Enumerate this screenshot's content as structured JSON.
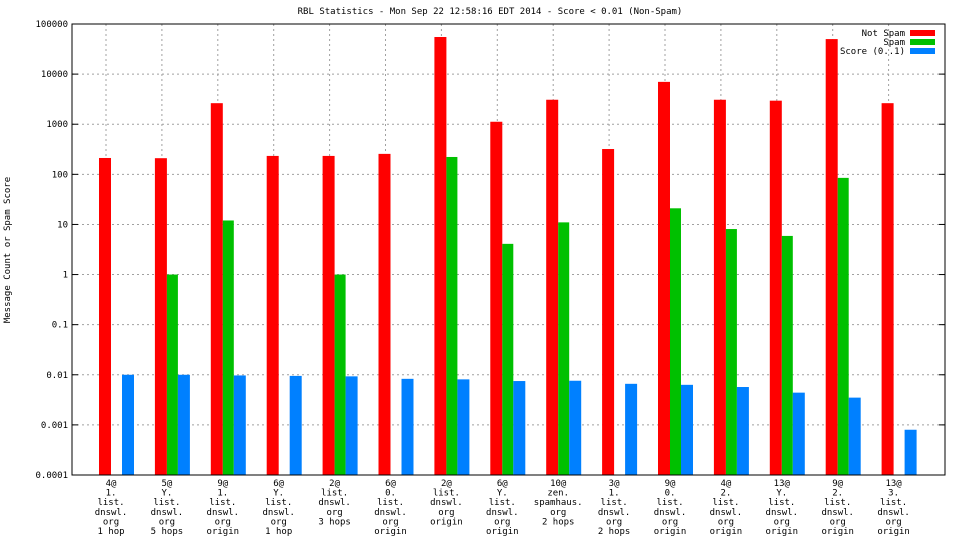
{
  "chart_data": {
    "type": "bar",
    "title": "RBL Statistics - Mon Sep 22 12:58:16 EDT 2014 - Score < 0.01 (Non-Spam)",
    "ylabel": "Message Count or Spam Score",
    "xlabel": "",
    "yscale": "log",
    "ylim": [
      0.0001,
      100000
    ],
    "yticks": [
      "0.0001",
      "0.001",
      "0.01",
      "0.1",
      "1",
      "10",
      "100",
      "1000",
      "10000",
      "100000"
    ],
    "grid": true,
    "legend_position": "top-right",
    "categories": [
      [
        "4@",
        "1.",
        "list.",
        "dnswl.",
        "org",
        "1 hop"
      ],
      [
        "5@",
        "Y.",
        "list.",
        "dnswl.",
        "org",
        "5 hops"
      ],
      [
        "9@",
        "1.",
        "list.",
        "dnswl.",
        "org",
        "origin"
      ],
      [
        "6@",
        "Y.",
        "list.",
        "dnswl.",
        "org",
        "1 hop"
      ],
      [
        "2@",
        "list.",
        "dnswl.",
        "org",
        "3 hops"
      ],
      [
        "6@",
        "0.",
        "list.",
        "dnswl.",
        "org",
        "origin"
      ],
      [
        "2@",
        "list.",
        "dnswl.",
        "org",
        "origin"
      ],
      [
        "6@",
        "Y.",
        "list.",
        "dnswl.",
        "org",
        "origin"
      ],
      [
        "10@",
        "zen.",
        "spamhaus.",
        "org",
        "2 hops"
      ],
      [
        "3@",
        "1.",
        "list.",
        "dnswl.",
        "org",
        "2 hops"
      ],
      [
        "9@",
        "0.",
        "list.",
        "dnswl.",
        "org",
        "origin"
      ],
      [
        "4@",
        "2.",
        "list.",
        "dnswl.",
        "org",
        "origin"
      ],
      [
        "13@",
        "Y.",
        "list.",
        "dnswl.",
        "org",
        "origin"
      ],
      [
        "9@",
        "2.",
        "list.",
        "dnswl.",
        "org",
        "origin"
      ],
      [
        "13@",
        "3.",
        "list.",
        "dnswl.",
        "org",
        "origin"
      ]
    ],
    "series": [
      {
        "name": "Not Spam",
        "color": "#ff0000",
        "values": [
          212,
          210,
          2630,
          233,
          233,
          256,
          55000,
          1120,
          3080,
          320,
          7000,
          3080,
          2950,
          50000,
          2630
        ]
      },
      {
        "name": "Spam",
        "color": "#00c000",
        "values": [
          null,
          1,
          12,
          null,
          1,
          null,
          222,
          4.1,
          11,
          null,
          21,
          8.1,
          5.9,
          85,
          null
        ]
      },
      {
        "name": "Score (0..1)",
        "color": "#0080ff",
        "values": [
          0.01,
          0.01,
          0.0097,
          0.0095,
          0.0093,
          0.0083,
          0.0081,
          0.0075,
          0.0076,
          0.0066,
          0.0063,
          0.0057,
          0.0044,
          0.0035,
          0.0008
        ]
      }
    ]
  }
}
